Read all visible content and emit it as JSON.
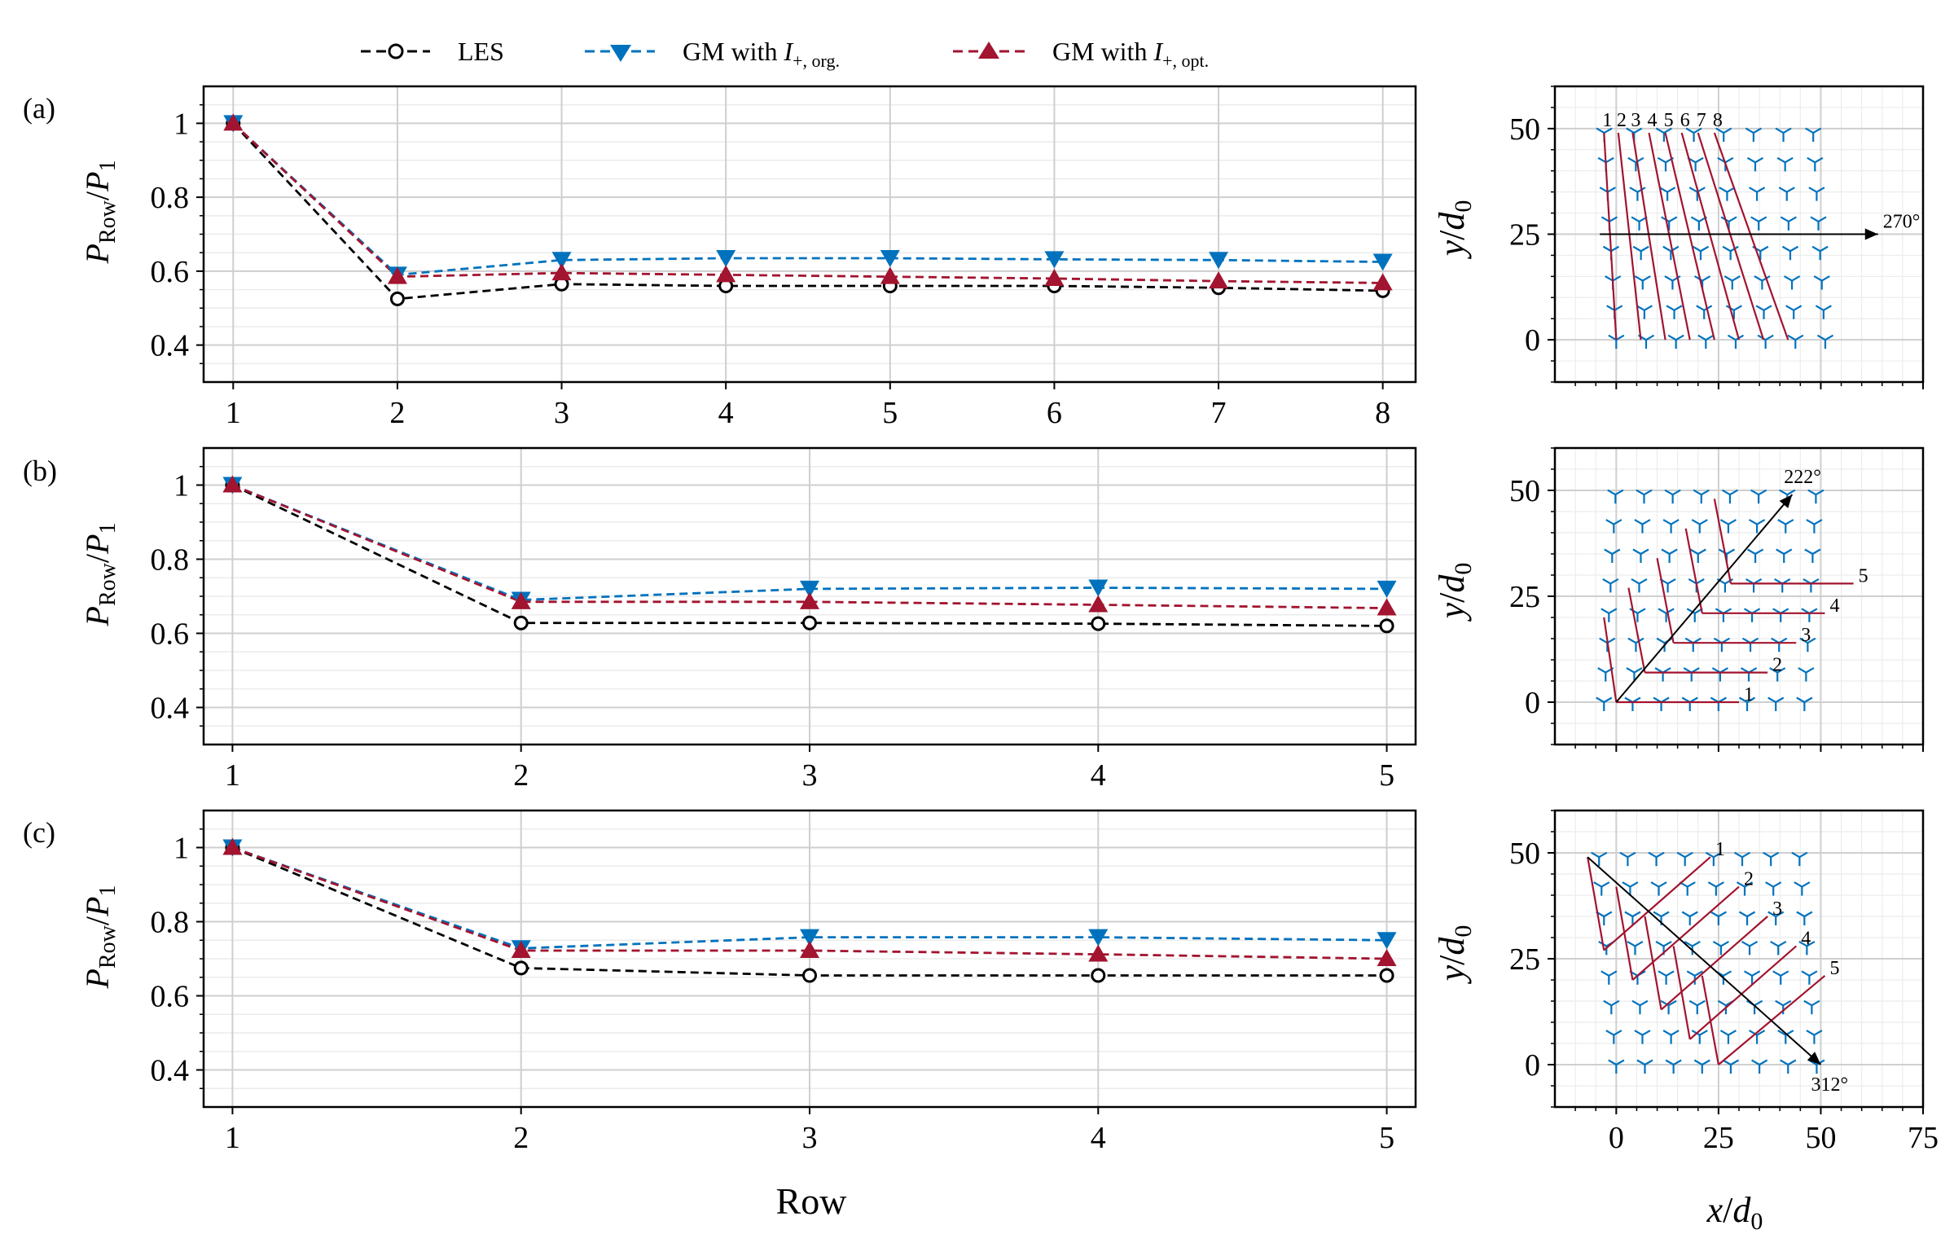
{
  "colors": {
    "les": "#000000",
    "gm_org": "#0072bd",
    "gm_opt": "#a2142f",
    "grid": "#cccccc",
    "layout_turbine": "#0072bd",
    "layout_row": "#a2142f"
  },
  "legend": {
    "items": [
      {
        "key": "les",
        "label": "LES",
        "marker": "circle-open"
      },
      {
        "key": "gm_org",
        "label": "GM with I+, org.",
        "marker": "triangle-down"
      },
      {
        "key": "gm_opt",
        "label": "GM with I+, opt.",
        "marker": "triangle-up"
      }
    ]
  },
  "chart_data": [
    {
      "panel": "(a)",
      "type": "line",
      "xlabel": "",
      "ylabel": "P_Row / P_1",
      "categories": [
        "1",
        "2",
        "3",
        "4",
        "5",
        "6",
        "7",
        "8"
      ],
      "x": [
        1,
        2,
        3,
        4,
        5,
        6,
        7,
        8
      ],
      "xlim": [
        0.82,
        8.2
      ],
      "ylim": [
        0.3,
        1.1
      ],
      "yticks": [
        0.4,
        0.6,
        0.8,
        1
      ],
      "ytick_labels": [
        "0.4",
        "0.6",
        "0.8",
        "1"
      ],
      "series": [
        {
          "key": "les",
          "name": "LES",
          "values": [
            1.0,
            0.525,
            0.565,
            0.56,
            0.56,
            0.56,
            0.555,
            0.547
          ]
        },
        {
          "key": "gm_org",
          "name": "GM with I+, org.",
          "values": [
            1.0,
            0.59,
            0.63,
            0.635,
            0.635,
            0.632,
            0.63,
            0.625
          ]
        },
        {
          "key": "gm_opt",
          "name": "GM with I+, opt.",
          "values": [
            1.0,
            0.585,
            0.595,
            0.59,
            0.585,
            0.58,
            0.573,
            0.568
          ]
        }
      ]
    },
    {
      "panel": "(b)",
      "type": "line",
      "xlabel": "",
      "ylabel": "P_Row / P_1",
      "categories": [
        "1",
        "2",
        "3",
        "4",
        "5"
      ],
      "x": [
        1,
        2,
        3,
        4,
        5
      ],
      "xlim": [
        0.9,
        5.1
      ],
      "ylim": [
        0.3,
        1.1
      ],
      "yticks": [
        0.4,
        0.6,
        0.8,
        1
      ],
      "ytick_labels": [
        "0.4",
        "0.6",
        "0.8",
        "1"
      ],
      "series": [
        {
          "key": "les",
          "name": "LES",
          "values": [
            1.0,
            0.628,
            0.628,
            0.626,
            0.62
          ]
        },
        {
          "key": "gm_org",
          "name": "GM with I+, org.",
          "values": [
            1.0,
            0.69,
            0.72,
            0.723,
            0.72
          ]
        },
        {
          "key": "gm_opt",
          "name": "GM with I+, opt.",
          "values": [
            1.0,
            0.685,
            0.685,
            0.677,
            0.668
          ]
        }
      ]
    },
    {
      "panel": "(c)",
      "type": "line",
      "xlabel": "Row",
      "ylabel": "P_Row / P_1",
      "categories": [
        "1",
        "2",
        "3",
        "4",
        "5"
      ],
      "x": [
        1,
        2,
        3,
        4,
        5
      ],
      "xlim": [
        0.9,
        5.1
      ],
      "ylim": [
        0.3,
        1.1
      ],
      "yticks": [
        0.4,
        0.6,
        0.8,
        1
      ],
      "ytick_labels": [
        "0.4",
        "0.6",
        "0.8",
        "1"
      ],
      "series": [
        {
          "key": "les",
          "name": "LES",
          "values": [
            1.0,
            0.675,
            0.655,
            0.655,
            0.655
          ]
        },
        {
          "key": "gm_org",
          "name": "GM with I+, org.",
          "values": [
            1.0,
            0.728,
            0.758,
            0.758,
            0.75
          ]
        },
        {
          "key": "gm_opt",
          "name": "GM with I+, opt.",
          "values": [
            1.0,
            0.722,
            0.722,
            0.712,
            0.7
          ]
        }
      ]
    }
  ],
  "layouts": [
    {
      "panel": "(a)",
      "xlim": [
        -15,
        75
      ],
      "ylim": [
        -10,
        60
      ],
      "yticks": [
        0,
        25,
        50
      ],
      "ytick_labels": [
        "0",
        "25",
        "50"
      ],
      "xticks": [
        0,
        25,
        50,
        75
      ],
      "xtick_labels": [],
      "xlabel": "",
      "ylabel": "y / d0",
      "wind_label": "270°",
      "wind_from": [
        -4,
        25
      ],
      "wind_to": [
        64,
        25
      ],
      "rows": [
        {
          "label": "1",
          "from": [
            -3,
            49
          ],
          "to": [
            0,
            0
          ]
        },
        {
          "label": "2",
          "from": [
            0.5,
            49
          ],
          "to": [
            6,
            0
          ]
        },
        {
          "label": "3",
          "from": [
            4,
            49
          ],
          "to": [
            12,
            0
          ]
        },
        {
          "label": "4",
          "from": [
            8,
            49
          ],
          "to": [
            18,
            0
          ]
        },
        {
          "label": "5",
          "from": [
            12,
            49
          ],
          "to": [
            24,
            0
          ]
        },
        {
          "label": "6",
          "from": [
            16,
            49
          ],
          "to": [
            30,
            0
          ]
        },
        {
          "label": "7",
          "from": [
            20,
            49
          ],
          "to": [
            36,
            0
          ]
        },
        {
          "label": "8",
          "from": [
            24,
            49
          ],
          "to": [
            42,
            0
          ]
        }
      ]
    },
    {
      "panel": "(b)",
      "xlim": [
        -15,
        75
      ],
      "ylim": [
        -10,
        60
      ],
      "yticks": [
        0,
        25,
        50
      ],
      "ytick_labels": [
        "0",
        "25",
        "50"
      ],
      "xticks": [
        0,
        25,
        50,
        75
      ],
      "xtick_labels": [],
      "xlabel": "",
      "ylabel": "y / d0",
      "wind_label": "222°",
      "wind_from": [
        0,
        0
      ],
      "wind_to": [
        43,
        49
      ],
      "rows": [
        {
          "label": "1",
          "from": [
            -3,
            20
          ],
          "to": [
            0,
            0
          ],
          "to2": [
            30,
            0
          ]
        },
        {
          "label": "2",
          "from": [
            3,
            27
          ],
          "to": [
            7,
            7
          ],
          "to2": [
            37,
            7
          ]
        },
        {
          "label": "3",
          "from": [
            10,
            34
          ],
          "to": [
            14,
            14
          ],
          "to2": [
            44,
            14
          ]
        },
        {
          "label": "4",
          "from": [
            17,
            41
          ],
          "to": [
            21,
            21
          ],
          "to2": [
            51,
            21
          ]
        },
        {
          "label": "5",
          "from": [
            24,
            48
          ],
          "to": [
            28,
            28
          ],
          "to2": [
            58,
            28
          ]
        }
      ]
    },
    {
      "panel": "(c)",
      "xlim": [
        -15,
        75
      ],
      "ylim": [
        -10,
        60
      ],
      "yticks": [
        0,
        25,
        50
      ],
      "ytick_labels": [
        "0",
        "25",
        "50"
      ],
      "xticks": [
        0,
        25,
        50,
        75
      ],
      "xtick_labels": [
        "0",
        "25",
        "50",
        "75"
      ],
      "xlabel": "x / d0",
      "ylabel": "y / d0",
      "wind_label": "312°",
      "wind_from": [
        -7,
        49
      ],
      "wind_to": [
        50,
        0
      ],
      "rows": [
        {
          "label": "1",
          "from": [
            -7,
            49
          ],
          "to": [
            -3,
            27
          ],
          "to2": [
            23,
            49
          ]
        },
        {
          "label": "2",
          "from": [
            0,
            42
          ],
          "to": [
            4,
            20
          ],
          "to2": [
            30,
            42
          ]
        },
        {
          "label": "3",
          "from": [
            7,
            35
          ],
          "to": [
            11,
            13
          ],
          "to2": [
            37,
            35
          ]
        },
        {
          "label": "4",
          "from": [
            14,
            28
          ],
          "to": [
            18,
            6
          ],
          "to2": [
            44,
            28
          ]
        },
        {
          "label": "5",
          "from": [
            21,
            21
          ],
          "to": [
            25,
            0
          ],
          "to2": [
            51,
            21
          ]
        }
      ]
    }
  ]
}
